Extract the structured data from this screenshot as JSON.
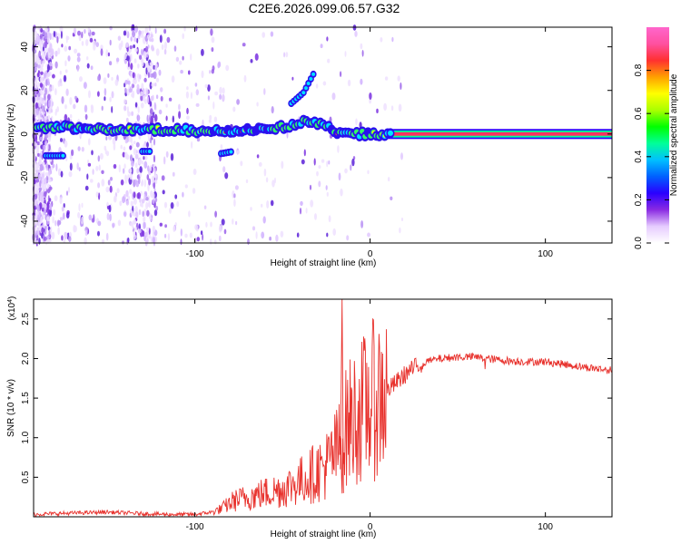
{
  "title": "C2E6.2026.099.06.57.G32",
  "chart_data": [
    {
      "type": "heatmap",
      "xlabel": "Height of straight line (km)",
      "ylabel": "Frequency (Hz)",
      "xlim": [
        -192,
        138
      ],
      "ylim": [
        -50,
        49
      ],
      "xticks": [
        -100,
        0,
        100
      ],
      "yticks": [
        -40,
        -20,
        0,
        20,
        40
      ],
      "colorbar": {
        "label": "Normalized spectral amplitude",
        "range": [
          0.0,
          1.0
        ],
        "ticks": [
          0.0,
          0.2,
          0.4,
          0.6,
          0.8
        ],
        "tick_labels": [
          "0.0",
          "0.2",
          "0.4",
          "0.6",
          "0.8"
        ],
        "colors": [
          "#ffffff",
          "#e6ccff",
          "#8a2be2",
          "#2a00ff",
          "#0060ff",
          "#00c0ff",
          "#00ff99",
          "#00ff00",
          "#aaff00",
          "#ffff00",
          "#ffa000",
          "#ff3030",
          "#ff50a0",
          "#ff66cc"
        ]
      },
      "ridge": {
        "x": [
          -192,
          -170,
          -150,
          -130,
          -110,
          -90,
          -70,
          -55,
          -45,
          -35,
          -28,
          -22,
          -15,
          -5,
          0,
          138
        ],
        "y": [
          3,
          3,
          2,
          2,
          2,
          1,
          2,
          3,
          4,
          6,
          4,
          2,
          0,
          0,
          0,
          0
        ]
      },
      "offshoots": [
        {
          "x": [
            -45,
            -38,
            -32
          ],
          "y": [
            14,
            19,
            28
          ]
        },
        {
          "x": [
            -130,
            -125
          ],
          "y": [
            -8,
            -8
          ]
        },
        {
          "x": [
            -85,
            -78
          ],
          "y": [
            -9,
            -8
          ]
        },
        {
          "x": [
            -185,
            -175
          ],
          "y": [
            -10,
            -10
          ]
        }
      ]
    },
    {
      "type": "line",
      "xlabel": "Height of straight line (km)",
      "ylabel": "SNR (10 * v/v)",
      "y_multiplier_label": "(x10",
      "y_multiplier_exponent": "4",
      "y_multiplier_close": ")",
      "xlim": [
        -192,
        138
      ],
      "ylim": [
        0,
        2.75
      ],
      "xticks": [
        -100,
        0,
        100
      ],
      "yticks": [
        0.5,
        1.0,
        1.5,
        2.0,
        2.5
      ],
      "ytick_labels": [
        "0.5",
        "1.0",
        "1.5",
        "2.0",
        "2.5"
      ],
      "color": "#e8322d",
      "series": [
        {
          "name": "SNR",
          "x": [
            -192,
            -180,
            -165,
            -150,
            -140,
            -130,
            -115,
            -100,
            -90,
            -85,
            -78,
            -70,
            -60,
            -50,
            -40,
            -32,
            -25,
            -20,
            -16,
            -14,
            -12,
            -8,
            -4,
            0,
            5,
            10,
            15,
            20,
            25,
            30,
            40,
            50,
            60,
            70,
            80,
            90,
            100,
            110,
            120,
            130,
            138
          ],
          "y": [
            0.03,
            0.04,
            0.05,
            0.06,
            0.05,
            0.04,
            0.03,
            0.03,
            0.06,
            0.1,
            0.2,
            0.25,
            0.3,
            0.35,
            0.45,
            0.55,
            0.65,
            0.8,
            0.95,
            1.1,
            1.2,
            1.28,
            1.36,
            1.45,
            1.52,
            1.6,
            1.7,
            1.8,
            1.88,
            1.95,
            2.0,
            2.02,
            2.02,
            1.99,
            1.97,
            1.96,
            1.96,
            1.93,
            1.9,
            1.87,
            1.85
          ]
        }
      ],
      "spike": {
        "x": -16,
        "y": 2.75
      }
    }
  ]
}
